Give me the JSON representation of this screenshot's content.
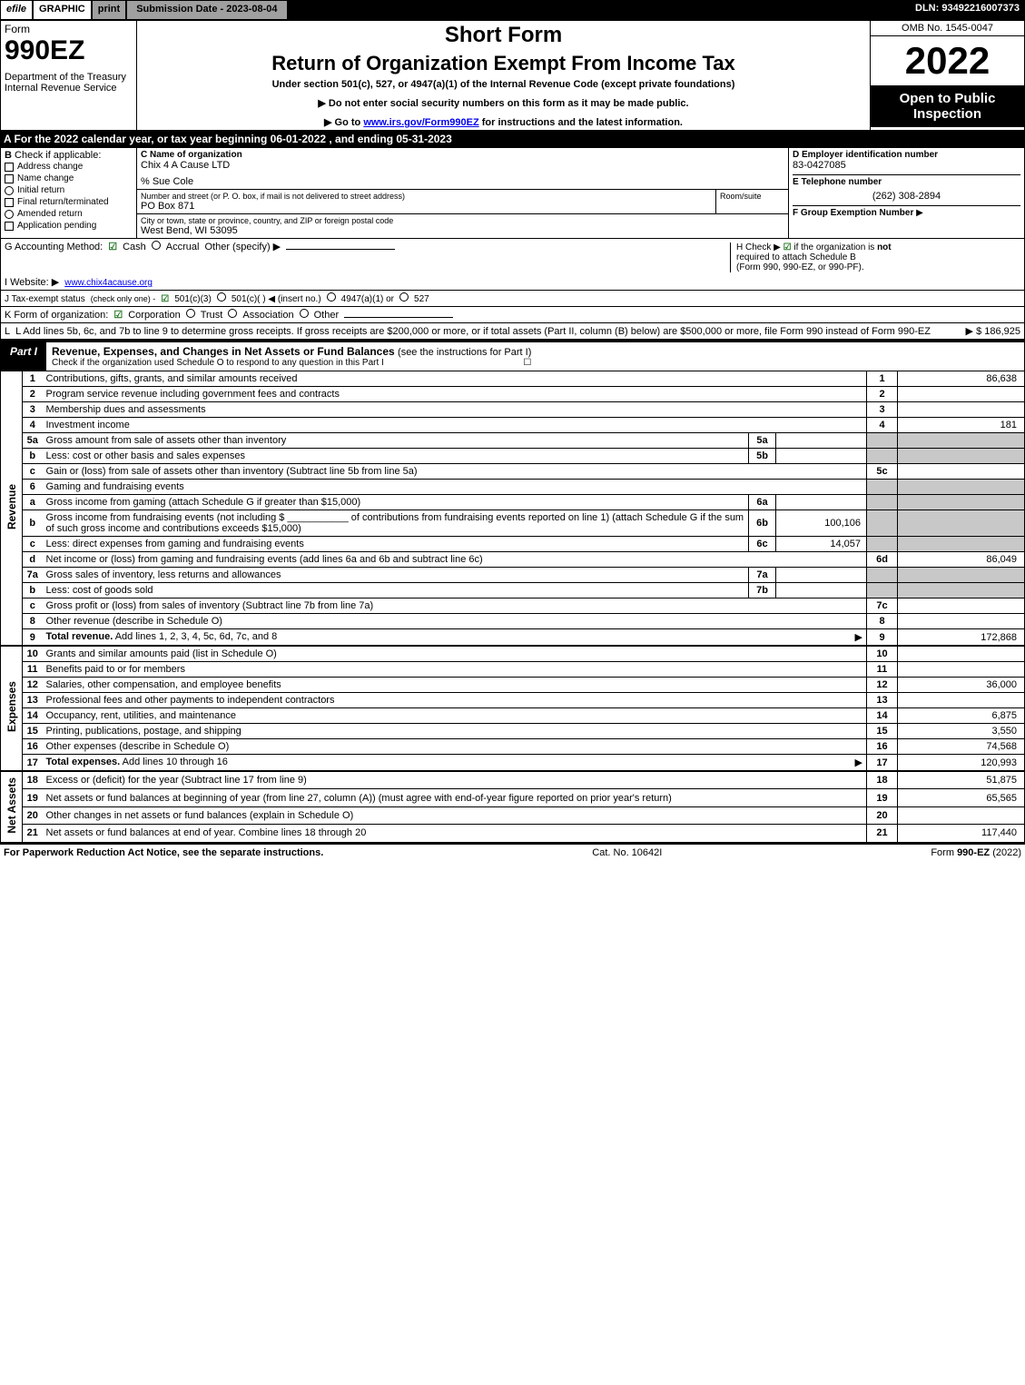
{
  "top": {
    "efile": "efile",
    "graphic": "GRAPHIC",
    "print": "print",
    "sub_date": "Submission Date - 2023-08-04",
    "dln": "DLN: 93492216007373"
  },
  "header": {
    "form_label": "Form",
    "form_number": "990EZ",
    "dept": "Department of the Treasury\nInternal Revenue Service",
    "short_form": "Short Form",
    "return_title": "Return of Organization Exempt From Income Tax",
    "under": "Under section 501(c), 527, or 4947(a)(1) of the Internal Revenue Code (except private foundations)",
    "instruction1": "▶ Do not enter social security numbers on this form as it may be made public.",
    "instruction2_pre": "▶ Go to ",
    "instruction2_link": "www.irs.gov/Form990EZ",
    "instruction2_post": " for instructions and the latest information.",
    "omb": "OMB No. 1545-0047",
    "year": "2022",
    "open": "Open to Public Inspection"
  },
  "section_a": "A  For the 2022 calendar year, or tax year beginning 06-01-2022 , and ending 05-31-2023",
  "box_b": {
    "title": "B",
    "check_label": "Check if applicable:",
    "options": [
      "Address change",
      "Name change",
      "Initial return",
      "Final return/terminated",
      "Amended return",
      "Application pending"
    ]
  },
  "box_c": {
    "name_label": "C Name of organization",
    "name": "Chix 4 A Cause LTD",
    "care_of": "% Sue Cole",
    "street_label": "Number and street (or P. O. box, if mail is not delivered to street address)",
    "room_label": "Room/suite",
    "street": "PO Box 871",
    "city_label": "City or town, state or province, country, and ZIP or foreign postal code",
    "city": "West Bend, WI  53095"
  },
  "box_d": {
    "ein_label": "D Employer identification number",
    "ein": "83-0427085",
    "phone_label": "E Telephone number",
    "phone": "(262) 308-2894",
    "group_label": "F Group Exemption Number",
    "arrow": "▶"
  },
  "line_g": {
    "label": "G Accounting Method:",
    "cash": "Cash",
    "accrual": "Accrual",
    "other": "Other (specify) ▶",
    "h_label": "H",
    "h_text_pre": "Check ▶ ",
    "h_text_post": " if the organization is ",
    "h_not": "not",
    "h_text2": "required to attach Schedule B",
    "h_text3": "(Form 990, 990-EZ, or 990-PF)."
  },
  "line_i": {
    "label": "I Website: ▶",
    "value": "www.chix4acause.org"
  },
  "line_j": {
    "label": "J Tax-exempt status",
    "note": "(check only one) -",
    "opt1": "501(c)(3)",
    "opt2": "501(c)(  ) ◀ (insert no.)",
    "opt3": "4947(a)(1) or",
    "opt4": "527"
  },
  "line_k": {
    "label": "K Form of organization:",
    "opts": [
      "Corporation",
      "Trust",
      "Association",
      "Other"
    ]
  },
  "line_l": {
    "text": "L Add lines 5b, 6c, and 7b to line 9 to determine gross receipts. If gross receipts are $200,000 or more, or if total assets (Part II, column (B) below) are $500,000 or more, file Form 990 instead of Form 990-EZ",
    "value": "▶ $ 186,925"
  },
  "part1": {
    "tag": "Part I",
    "title": "Revenue, Expenses, and Changes in Net Assets or Fund Balances",
    "sub": "(see the instructions for Part I)",
    "check_line": "Check if the organization used Schedule O to respond to any question in this Part I",
    "check_end": "☐"
  },
  "sections": {
    "revenue": "Revenue",
    "expenses": "Expenses",
    "netassets": "Net Assets"
  },
  "lines": [
    {
      "n": "1",
      "desc": "Contributions, gifts, grants, and similar amounts received",
      "lbl": "1",
      "val": "86,638",
      "sec": "revenue"
    },
    {
      "n": "2",
      "desc": "Program service revenue including government fees and contracts",
      "lbl": "2",
      "val": "",
      "sec": "revenue"
    },
    {
      "n": "3",
      "desc": "Membership dues and assessments",
      "lbl": "3",
      "val": "",
      "sec": "revenue"
    },
    {
      "n": "4",
      "desc": "Investment income",
      "lbl": "4",
      "val": "181",
      "sec": "revenue"
    },
    {
      "n": "5a",
      "desc": "Gross amount from sale of assets other than inventory",
      "mid_lbl": "5a",
      "mid_val": "",
      "shade": true,
      "sec": "revenue"
    },
    {
      "n": "b",
      "desc": "Less: cost or other basis and sales expenses",
      "mid_lbl": "5b",
      "mid_val": "",
      "shade": true,
      "sec": "revenue"
    },
    {
      "n": "c",
      "desc": "Gain or (loss) from sale of assets other than inventory (Subtract line 5b from line 5a)",
      "lbl": "5c",
      "val": "",
      "sec": "revenue"
    },
    {
      "n": "6",
      "desc": "Gaming and fundraising events",
      "shade": true,
      "sec": "revenue"
    },
    {
      "n": "a",
      "desc": "Gross income from gaming (attach Schedule G if greater than $15,000)",
      "mid_lbl": "6a",
      "mid_val": "",
      "shade": true,
      "sec": "revenue"
    },
    {
      "n": "b",
      "desc_html": "Gross income from fundraising events (not including $ ___________ of contributions from fundraising events reported on line 1) (attach Schedule G if the sum of such gross income and contributions exceeds $15,000)",
      "mid_lbl": "6b",
      "mid_val": "100,106",
      "shade": true,
      "sec": "revenue",
      "multi": true
    },
    {
      "n": "c",
      "desc": "Less: direct expenses from gaming and fundraising events",
      "mid_lbl": "6c",
      "mid_val": "14,057",
      "shade": true,
      "sec": "revenue"
    },
    {
      "n": "d",
      "desc": "Net income or (loss) from gaming and fundraising events (add lines 6a and 6b and subtract line 6c)",
      "lbl": "6d",
      "val": "86,049",
      "sec": "revenue"
    },
    {
      "n": "7a",
      "desc": "Gross sales of inventory, less returns and allowances",
      "mid_lbl": "7a",
      "mid_val": "",
      "shade": true,
      "sec": "revenue"
    },
    {
      "n": "b",
      "desc": "Less: cost of goods sold",
      "mid_lbl": "7b",
      "mid_val": "",
      "shade": true,
      "sec": "revenue"
    },
    {
      "n": "c",
      "desc": "Gross profit or (loss) from sales of inventory (Subtract line 7b from line 7a)",
      "lbl": "7c",
      "val": "",
      "sec": "revenue"
    },
    {
      "n": "8",
      "desc": "Other revenue (describe in Schedule O)",
      "lbl": "8",
      "val": "",
      "sec": "revenue"
    },
    {
      "n": "9",
      "desc": "Total revenue. Add lines 1, 2, 3, 4, 5c, 6d, 7c, and 8",
      "lbl": "9",
      "val": "172,868",
      "sec": "revenue",
      "bold": true,
      "arrow": true,
      "b2": true
    },
    {
      "n": "10",
      "desc": "Grants and similar amounts paid (list in Schedule O)",
      "lbl": "10",
      "val": "",
      "sec": "expenses"
    },
    {
      "n": "11",
      "desc": "Benefits paid to or for members",
      "lbl": "11",
      "val": "",
      "sec": "expenses"
    },
    {
      "n": "12",
      "desc": "Salaries, other compensation, and employee benefits",
      "lbl": "12",
      "val": "36,000",
      "sec": "expenses"
    },
    {
      "n": "13",
      "desc": "Professional fees and other payments to independent contractors",
      "lbl": "13",
      "val": "",
      "sec": "expenses"
    },
    {
      "n": "14",
      "desc": "Occupancy, rent, utilities, and maintenance",
      "lbl": "14",
      "val": "6,875",
      "sec": "expenses"
    },
    {
      "n": "15",
      "desc": "Printing, publications, postage, and shipping",
      "lbl": "15",
      "val": "3,550",
      "sec": "expenses"
    },
    {
      "n": "16",
      "desc": "Other expenses (describe in Schedule O)",
      "lbl": "16",
      "val": "74,568",
      "sec": "expenses"
    },
    {
      "n": "17",
      "desc": "Total expenses. Add lines 10 through 16",
      "lbl": "17",
      "val": "120,993",
      "sec": "expenses",
      "bold": true,
      "arrow": true,
      "b2": true
    },
    {
      "n": "18",
      "desc": "Excess or (deficit) for the year (Subtract line 17 from line 9)",
      "lbl": "18",
      "val": "51,875",
      "sec": "netassets"
    },
    {
      "n": "19",
      "desc": "Net assets or fund balances at beginning of year (from line 27, column (A)) (must agree with end-of-year figure reported on prior year's return)",
      "lbl": "19",
      "val": "65,565",
      "sec": "netassets",
      "multi": true
    },
    {
      "n": "20",
      "desc": "Other changes in net assets or fund balances (explain in Schedule O)",
      "lbl": "20",
      "val": "",
      "sec": "netassets"
    },
    {
      "n": "21",
      "desc": "Net assets or fund balances at end of year. Combine lines 18 through 20",
      "lbl": "21",
      "val": "117,440",
      "sec": "netassets",
      "b2": true
    }
  ],
  "footer": {
    "left": "For Paperwork Reduction Act Notice, see the separate instructions.",
    "mid": "Cat. No. 10642I",
    "right_pre": "Form ",
    "right_bold": "990-EZ",
    "right_post": " (2022)"
  }
}
